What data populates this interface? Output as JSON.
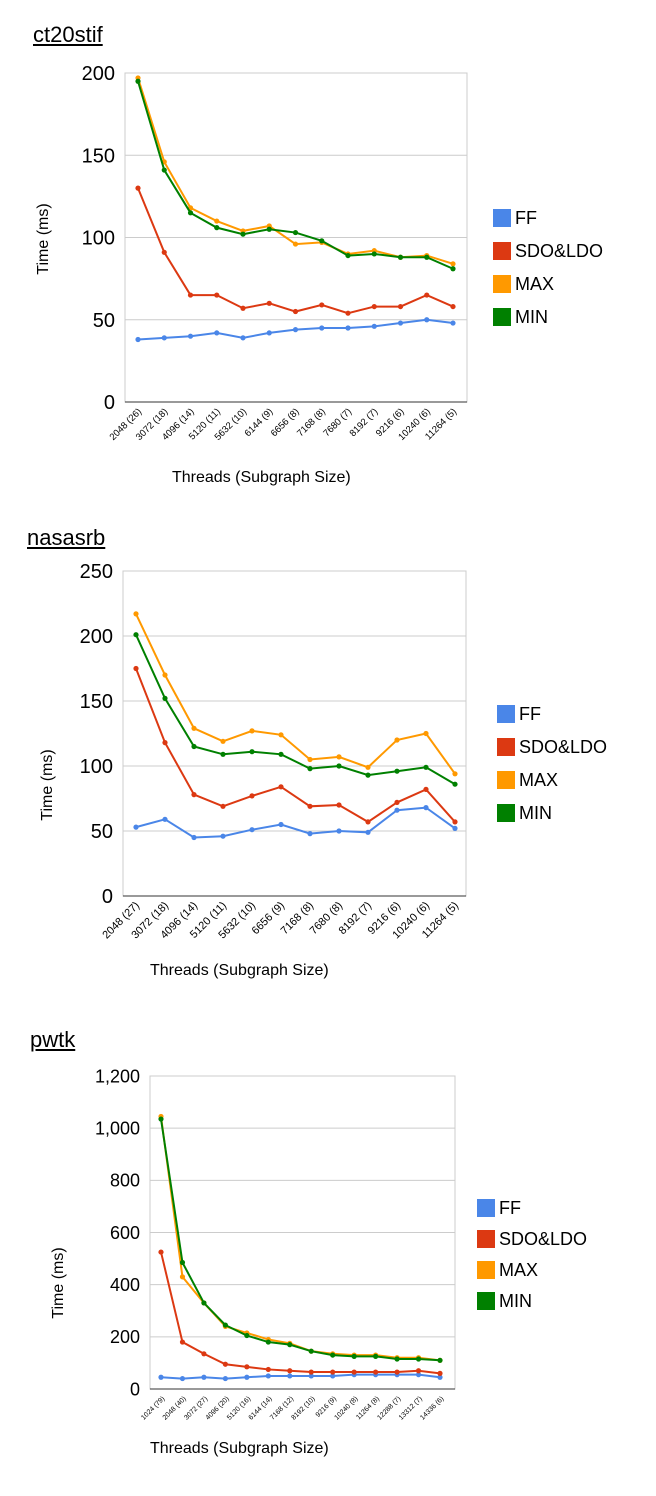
{
  "legend_colors": {
    "FF": "#4a86e8",
    "SDO&LDO": "#dc3912",
    "MAX": "#ff9900",
    "MIN": "#008000"
  },
  "chart_data": [
    {
      "type": "line",
      "title": "ct20stif",
      "xlabel": "Threads (Subgraph Size)",
      "ylabel": "Time (ms)",
      "ylim": [
        0,
        200
      ],
      "yticks": [
        "0",
        "50",
        "100",
        "150",
        "200"
      ],
      "grid": true,
      "legend_position": "right",
      "categories": [
        "2048 (26)",
        "3072 (18)",
        "4096 (14)",
        "5120 (11)",
        "5632 (10)",
        "6144 (9)",
        "6656 (8)",
        "7168 (8)",
        "7680 (7)",
        "8192 (7)",
        "9216 (6)",
        "10240 (6)",
        "11264 (5)"
      ],
      "series": [
        {
          "name": "FF",
          "color": "#4a86e8",
          "values": [
            38,
            39,
            40,
            42,
            39,
            42,
            44,
            45,
            45,
            46,
            48,
            50,
            48
          ]
        },
        {
          "name": "SDO&LDO",
          "color": "#dc3912",
          "values": [
            130,
            91,
            65,
            65,
            57,
            60,
            55,
            59,
            54,
            58,
            58,
            65,
            58
          ]
        },
        {
          "name": "MAX",
          "color": "#ff9900",
          "values": [
            197,
            146,
            118,
            110,
            104,
            107,
            96,
            97,
            90,
            92,
            88,
            89,
            84
          ]
        },
        {
          "name": "MIN",
          "color": "#008000",
          "values": [
            195,
            141,
            115,
            106,
            102,
            105,
            103,
            98,
            89,
            90,
            88,
            88,
            81
          ]
        }
      ]
    },
    {
      "type": "line",
      "title": "nasasrb",
      "xlabel": "Threads (Subgraph Size)",
      "ylabel": "Time (ms)",
      "ylim": [
        0,
        250
      ],
      "yticks": [
        "0",
        "50",
        "100",
        "150",
        "200",
        "250"
      ],
      "grid": true,
      "legend_position": "right",
      "categories": [
        "2048 (27)",
        "3072 (18)",
        "4096 (14)",
        "5120 (11)",
        "5632 (10)",
        "6656 (9)",
        "7168 (8)",
        "7680 (8)",
        "8192 (7)",
        "9216 (6)",
        "10240 (6)",
        "11264 (5)"
      ],
      "series": [
        {
          "name": "FF",
          "color": "#4a86e8",
          "values": [
            53,
            59,
            45,
            46,
            51,
            55,
            48,
            50,
            49,
            66,
            68,
            52
          ]
        },
        {
          "name": "SDO&LDO",
          "color": "#dc3912",
          "values": [
            175,
            118,
            78,
            69,
            77,
            84,
            69,
            70,
            57,
            72,
            82,
            57
          ]
        },
        {
          "name": "MAX",
          "color": "#ff9900",
          "values": [
            217,
            170,
            129,
            119,
            127,
            124,
            105,
            107,
            99,
            120,
            125,
            94
          ]
        },
        {
          "name": "MIN",
          "color": "#008000",
          "values": [
            201,
            152,
            115,
            109,
            111,
            109,
            98,
            100,
            93,
            96,
            99,
            86
          ]
        }
      ]
    },
    {
      "type": "line",
      "title": "pwtk",
      "xlabel": "Threads (Subgraph Size)",
      "ylabel": "Time (ms)",
      "ylim": [
        0,
        1200
      ],
      "yticks": [
        "0",
        "200",
        "400",
        "600",
        "800",
        "1,000",
        "1,200"
      ],
      "grid": true,
      "legend_position": "right",
      "categories": [
        "1024 (79)",
        "2048 (40)",
        "3072 (27)",
        "4096 (20)",
        "5120 (16)",
        "6144 (14)",
        "7168 (12)",
        "8192 (10)",
        "9216 (9)",
        "10240 (8)",
        "11264 (8)",
        "12288 (7)",
        "13312 (7)",
        "14336 (6)"
      ],
      "series": [
        {
          "name": "FF",
          "color": "#4a86e8",
          "values": [
            45,
            40,
            45,
            40,
            45,
            50,
            50,
            50,
            50,
            55,
            55,
            55,
            55,
            45
          ]
        },
        {
          "name": "SDO&LDO",
          "color": "#dc3912",
          "values": [
            525,
            180,
            135,
            95,
            85,
            75,
            70,
            65,
            65,
            65,
            65,
            65,
            70,
            60
          ]
        },
        {
          "name": "MAX",
          "color": "#ff9900",
          "values": [
            1045,
            430,
            330,
            240,
            215,
            190,
            175,
            145,
            135,
            130,
            130,
            120,
            120,
            110
          ]
        },
        {
          "name": "MIN",
          "color": "#008000",
          "values": [
            1035,
            485,
            330,
            245,
            205,
            180,
            170,
            145,
            130,
            125,
            125,
            115,
            115,
            110
          ]
        }
      ]
    }
  ]
}
